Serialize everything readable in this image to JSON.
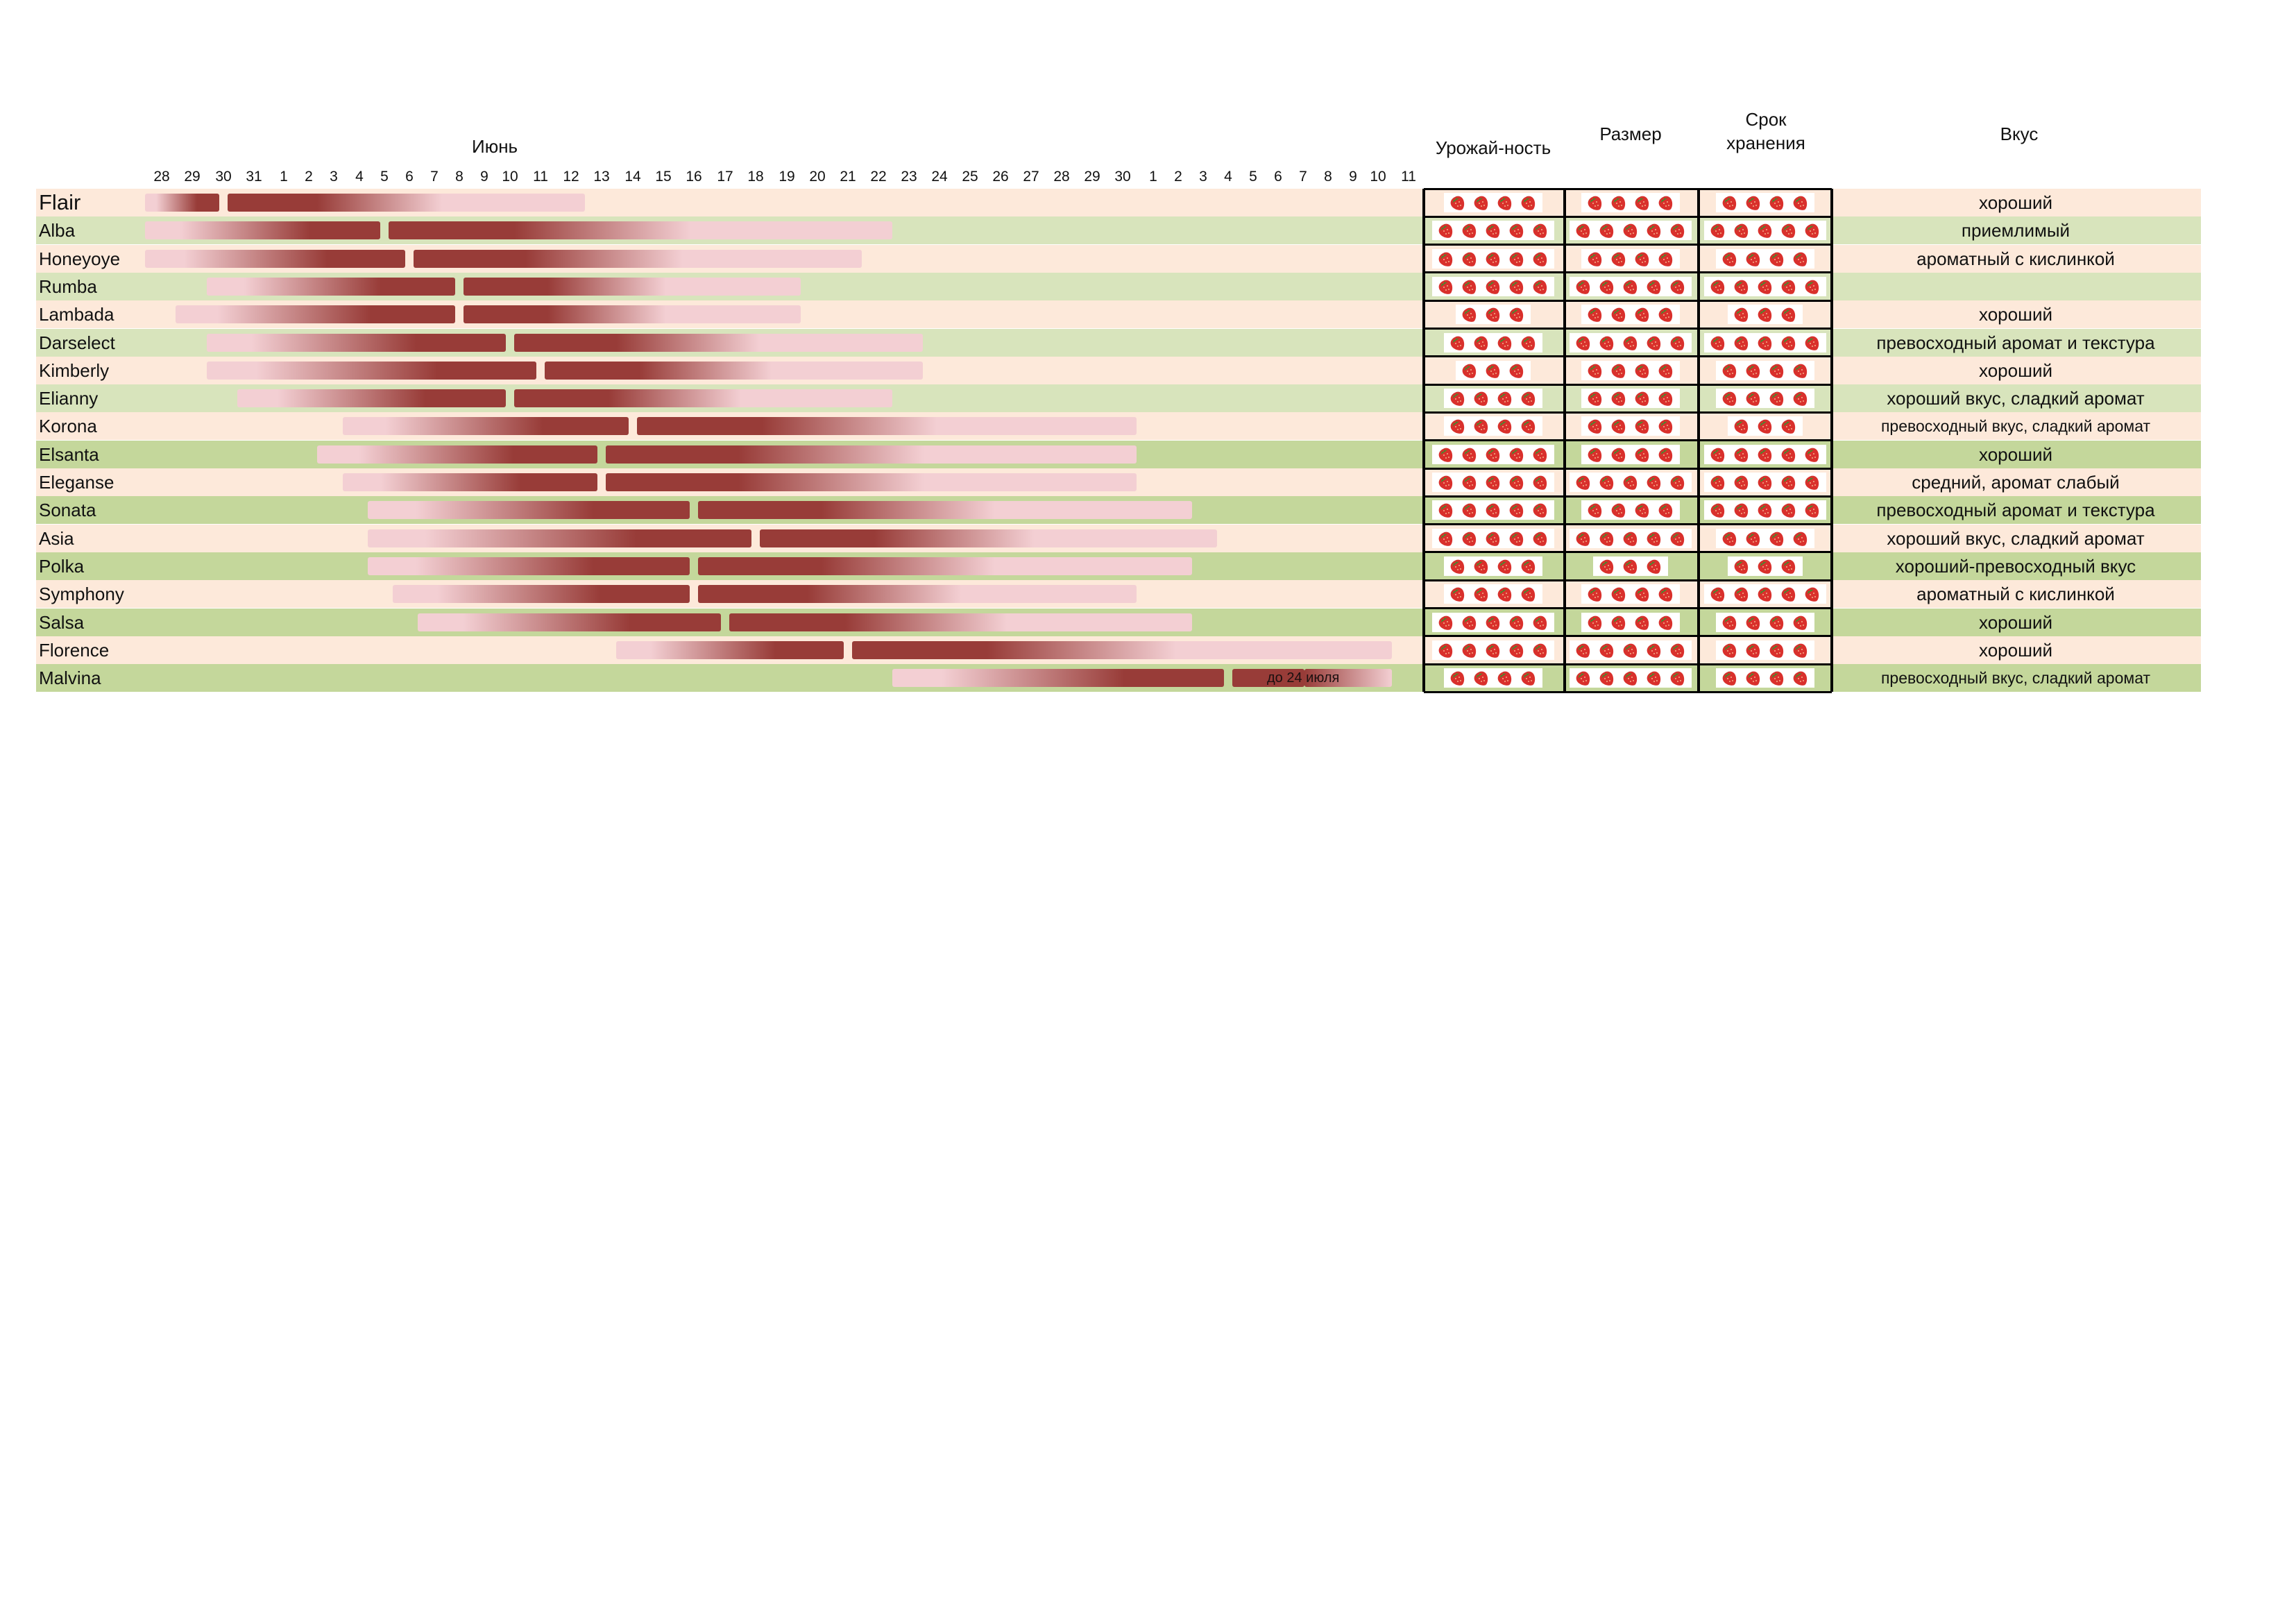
{
  "chart_data": {
    "type": "gantt",
    "title": "",
    "month_label": "Июнь",
    "day_ticks": [
      "28",
      "29",
      "30",
      "31",
      "1",
      "2",
      "3",
      "4",
      "5",
      "6",
      "7",
      "8",
      "9",
      "10",
      "11",
      "12",
      "13",
      "14",
      "15",
      "16",
      "17",
      "18",
      "19",
      "20",
      "21",
      "22",
      "23",
      "24",
      "25",
      "26",
      "27",
      "28",
      "29",
      "30",
      "1",
      "2",
      "3",
      "4",
      "5",
      "6",
      "7",
      "8",
      "9",
      "10",
      "11"
    ],
    "columns": {
      "yield": "Урожай-ность",
      "size": "Размер",
      "storage": "Срок\nхранения",
      "taste": "Вкус"
    },
    "colors": {
      "bar_dark": "#983c38",
      "bar_light": "#f3cfd3",
      "row_peach": "#fde9da",
      "row_green_light": "#d8e4bc",
      "row_green": "#c4d79b",
      "grid": "#000000"
    },
    "varieties": [
      {
        "name": "Flair",
        "lead": [
          28,
          30
        ],
        "main": [
          31,
          12
        ],
        "taste": "хороший",
        "yield": 4,
        "size": 4,
        "storage": 4
      },
      {
        "name": "Alba",
        "lead": [
          28,
          5
        ],
        "main": [
          5,
          22
        ],
        "taste": "приемлимый",
        "yield": 5,
        "size": 5,
        "storage": 5
      },
      {
        "name": "Honeyoye",
        "lead": [
          28,
          6
        ],
        "main": [
          6,
          21
        ],
        "taste": "ароматный с кислинкой",
        "yield": 5,
        "size": 4,
        "storage": 4
      },
      {
        "name": "Rumba",
        "lead": [
          30,
          8
        ],
        "main": [
          8,
          19
        ],
        "taste": "",
        "yield": 5,
        "size": 5,
        "storage": 5
      },
      {
        "name": "Lambada",
        "lead": [
          29,
          8
        ],
        "main": [
          8,
          19
        ],
        "taste": "хороший",
        "yield": 3,
        "size": 4,
        "storage": 3
      },
      {
        "name": "Darselect",
        "lead": [
          30,
          10
        ],
        "main": [
          10,
          23
        ],
        "taste": "превосходный аромат и текстура",
        "yield": 4,
        "size": 5,
        "storage": 5
      },
      {
        "name": "Kimberly",
        "lead": [
          30,
          11
        ],
        "main": [
          11,
          23
        ],
        "taste": "хороший",
        "yield": 3,
        "size": 4,
        "storage": 4
      },
      {
        "name": "Elianny",
        "lead": [
          31,
          10
        ],
        "main": [
          10,
          22
        ],
        "taste": "хороший вкус, сладкий аромат",
        "yield": 4,
        "size": 4,
        "storage": 4
      },
      {
        "name": "Korona",
        "lead": [
          4,
          14
        ],
        "main": [
          14,
          30
        ],
        "taste": "превосходный вкус, сладкий аромат",
        "yield": 4,
        "size": 4,
        "storage": 3
      },
      {
        "name": "Elsanta",
        "lead": [
          3,
          13
        ],
        "main": [
          13,
          30
        ],
        "taste": "хороший",
        "yield": 5,
        "size": 4,
        "storage": 5
      },
      {
        "name": "Eleganse",
        "lead": [
          4,
          13
        ],
        "main": [
          13,
          30
        ],
        "taste": "средний, аромат слабый",
        "yield": 5,
        "size": 5,
        "storage": 5
      },
      {
        "name": "Sonata",
        "lead": [
          5,
          16
        ],
        "main": [
          16,
          2
        ],
        "taste": "превосходный аромат и текстура",
        "yield": 5,
        "size": 4,
        "storage": 5
      },
      {
        "name": "Asia",
        "lead": [
          5,
          18
        ],
        "main": [
          18,
          3
        ],
        "taste": "хороший вкус, сладкий аромат",
        "yield": 5,
        "size": 5,
        "storage": 4
      },
      {
        "name": "Polka",
        "lead": [
          5,
          16
        ],
        "main": [
          16,
          2
        ],
        "taste": "хороший-превосходный вкус",
        "yield": 4,
        "size": 3,
        "storage": 3
      },
      {
        "name": "Symphony",
        "lead": [
          6,
          16
        ],
        "main": [
          16,
          30
        ],
        "taste": "ароматный с кислинкой",
        "yield": 4,
        "size": 4,
        "storage": 5
      },
      {
        "name": "Salsa",
        "lead": [
          7,
          17
        ],
        "main": [
          17,
          2
        ],
        "taste": "хороший",
        "yield": 5,
        "size": 4,
        "storage": 4
      },
      {
        "name": "Florence",
        "lead": [
          14,
          21
        ],
        "main": [
          21,
          10
        ],
        "taste": "хороший",
        "yield": 5,
        "size": 5,
        "storage": 4
      },
      {
        "name": "Malvina",
        "lead": [
          23,
          4
        ],
        "main": [
          4,
          10
        ],
        "main_label": "до 24 июля",
        "taste": "превосходный вкус, сладкий аромат",
        "yield": 4,
        "size": 5,
        "storage": 4
      }
    ]
  }
}
